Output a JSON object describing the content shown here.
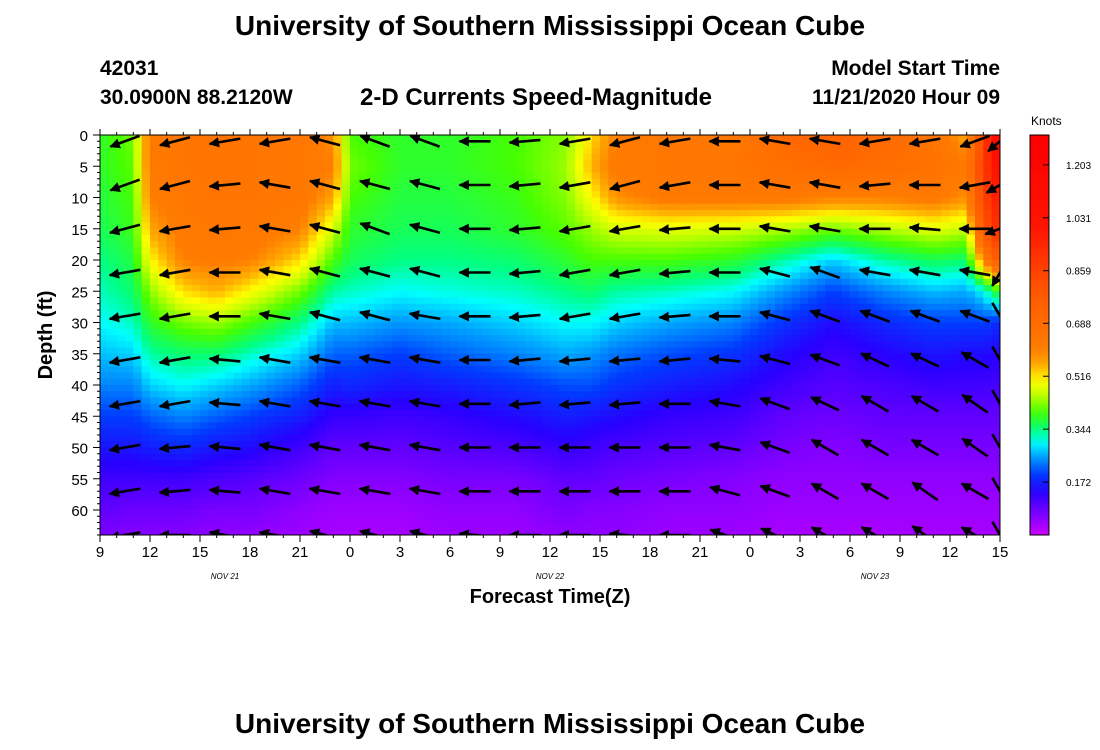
{
  "titles": {
    "main": "University of Southern Mississippi Ocean Cube",
    "footer": "University of Southern Mississippi Ocean Cube",
    "product": "2-D Currents Speed-Magnitude"
  },
  "station": {
    "id": "42031",
    "coords": "30.0900N 88.2120W"
  },
  "model_start": {
    "label": "Model Start Time",
    "value": "11/21/2020 Hour 09"
  },
  "chart_data": {
    "type": "heatmap",
    "title": "2-D Currents Speed-Magnitude",
    "xlabel": "Forecast Time(Z)",
    "ylabel": "Depth (ft)",
    "x_range_hours": [
      0,
      54
    ],
    "ylim": [
      0,
      64
    ],
    "y_inverted": true,
    "x_tick_labels": [
      "9",
      "12",
      "15",
      "18",
      "21",
      "0",
      "3",
      "6",
      "9",
      "12",
      "15",
      "18",
      "21",
      "0",
      "3",
      "6",
      "9",
      "12",
      "15"
    ],
    "date_labels": [
      {
        "text": "NOV  21",
        "hour": 7.5
      },
      {
        "text": "NOV  22",
        "hour": 27
      },
      {
        "text": "NOV  23",
        "hour": 46.5
      }
    ],
    "y_ticks": [
      0,
      5,
      10,
      15,
      20,
      25,
      30,
      35,
      40,
      45,
      50,
      55,
      60
    ],
    "colorbar": {
      "label": "Knots",
      "ticks": [
        0.172,
        0.344,
        0.516,
        0.688,
        0.859,
        1.031,
        1.203
      ],
      "range": [
        0,
        1.3
      ]
    },
    "speed_depths": [
      0,
      5,
      10,
      15,
      20,
      25,
      30,
      35,
      40,
      45,
      50,
      55,
      60,
      64
    ],
    "speed_columns": [
      {
        "hour": 0,
        "speeds": [
          0.38,
          0.38,
          0.37,
          0.36,
          0.34,
          0.32,
          0.3,
          0.27,
          0.24,
          0.2,
          0.16,
          0.12,
          0.09,
          0.07
        ]
      },
      {
        "hour": 2,
        "speeds": [
          0.42,
          0.41,
          0.4,
          0.39,
          0.37,
          0.35,
          0.32,
          0.28,
          0.24,
          0.2,
          0.16,
          0.12,
          0.08,
          0.06
        ]
      },
      {
        "hour": 3,
        "speeds": [
          0.62,
          0.62,
          0.6,
          0.56,
          0.5,
          0.43,
          0.38,
          0.33,
          0.28,
          0.22,
          0.17,
          0.12,
          0.08,
          0.06
        ]
      },
      {
        "hour": 5,
        "speeds": [
          0.64,
          0.64,
          0.63,
          0.62,
          0.6,
          0.52,
          0.42,
          0.35,
          0.3,
          0.24,
          0.18,
          0.12,
          0.08,
          0.06
        ]
      },
      {
        "hour": 7,
        "speeds": [
          0.64,
          0.64,
          0.64,
          0.63,
          0.61,
          0.55,
          0.44,
          0.35,
          0.28,
          0.22,
          0.16,
          0.11,
          0.07,
          0.05
        ]
      },
      {
        "hour": 9,
        "speeds": [
          0.64,
          0.64,
          0.64,
          0.63,
          0.6,
          0.5,
          0.4,
          0.32,
          0.26,
          0.2,
          0.15,
          0.1,
          0.07,
          0.05
        ]
      },
      {
        "hour": 12,
        "speeds": [
          0.63,
          0.63,
          0.63,
          0.6,
          0.52,
          0.42,
          0.34,
          0.28,
          0.22,
          0.17,
          0.12,
          0.08,
          0.05,
          0.04
        ]
      },
      {
        "hour": 14,
        "speeds": [
          0.58,
          0.6,
          0.56,
          0.47,
          0.4,
          0.33,
          0.27,
          0.22,
          0.17,
          0.13,
          0.09,
          0.06,
          0.04,
          0.03
        ]
      },
      {
        "hour": 15,
        "speeds": [
          0.4,
          0.42,
          0.4,
          0.38,
          0.36,
          0.32,
          0.27,
          0.22,
          0.18,
          0.13,
          0.09,
          0.06,
          0.04,
          0.03
        ]
      },
      {
        "hour": 18,
        "speeds": [
          0.38,
          0.38,
          0.37,
          0.36,
          0.34,
          0.3,
          0.25,
          0.2,
          0.16,
          0.12,
          0.09,
          0.06,
          0.04,
          0.03
        ]
      },
      {
        "hour": 21,
        "speeds": [
          0.38,
          0.38,
          0.37,
          0.36,
          0.34,
          0.31,
          0.26,
          0.22,
          0.17,
          0.13,
          0.1,
          0.07,
          0.05,
          0.04
        ]
      },
      {
        "hour": 25,
        "speeds": [
          0.4,
          0.4,
          0.39,
          0.38,
          0.35,
          0.32,
          0.28,
          0.24,
          0.19,
          0.15,
          0.11,
          0.07,
          0.05,
          0.04
        ]
      },
      {
        "hour": 28,
        "speeds": [
          0.43,
          0.44,
          0.43,
          0.41,
          0.38,
          0.34,
          0.3,
          0.26,
          0.21,
          0.17,
          0.13,
          0.09,
          0.07,
          0.05
        ]
      },
      {
        "hour": 29.5,
        "speeds": [
          0.52,
          0.55,
          0.5,
          0.44,
          0.4,
          0.35,
          0.3,
          0.25,
          0.21,
          0.16,
          0.12,
          0.09,
          0.06,
          0.05
        ]
      },
      {
        "hour": 31,
        "speeds": [
          0.6,
          0.62,
          0.58,
          0.47,
          0.4,
          0.33,
          0.28,
          0.23,
          0.19,
          0.15,
          0.11,
          0.08,
          0.06,
          0.05
        ]
      },
      {
        "hour": 34,
        "speeds": [
          0.63,
          0.63,
          0.62,
          0.48,
          0.4,
          0.32,
          0.26,
          0.21,
          0.17,
          0.13,
          0.1,
          0.07,
          0.05,
          0.04
        ]
      },
      {
        "hour": 38,
        "speeds": [
          0.62,
          0.64,
          0.62,
          0.47,
          0.38,
          0.3,
          0.24,
          0.19,
          0.15,
          0.12,
          0.09,
          0.06,
          0.05,
          0.04
        ]
      },
      {
        "hour": 41,
        "speeds": [
          0.7,
          0.67,
          0.62,
          0.45,
          0.33,
          0.25,
          0.19,
          0.15,
          0.12,
          0.09,
          0.07,
          0.05,
          0.04,
          0.03
        ]
      },
      {
        "hour": 44,
        "speeds": [
          0.73,
          0.7,
          0.6,
          0.42,
          0.28,
          0.2,
          0.15,
          0.12,
          0.1,
          0.08,
          0.06,
          0.05,
          0.04,
          0.03
        ]
      },
      {
        "hour": 47,
        "speeds": [
          0.7,
          0.68,
          0.6,
          0.45,
          0.33,
          0.24,
          0.18,
          0.14,
          0.11,
          0.09,
          0.07,
          0.05,
          0.04,
          0.03
        ]
      },
      {
        "hour": 50,
        "speeds": [
          0.64,
          0.66,
          0.62,
          0.48,
          0.36,
          0.27,
          0.2,
          0.16,
          0.12,
          0.09,
          0.07,
          0.05,
          0.04,
          0.03
        ]
      },
      {
        "hour": 52,
        "speeds": [
          0.55,
          0.62,
          0.58,
          0.46,
          0.35,
          0.26,
          0.2,
          0.15,
          0.12,
          0.09,
          0.07,
          0.05,
          0.04,
          0.03
        ]
      },
      {
        "hour": 53,
        "speeds": [
          0.85,
          0.88,
          0.85,
          0.78,
          0.6,
          0.3,
          0.2,
          0.15,
          0.12,
          0.09,
          0.07,
          0.05,
          0.04,
          0.03
        ]
      },
      {
        "hour": 54,
        "speeds": [
          1.2,
          1.05,
          1.0,
          0.95,
          0.8,
          0.4,
          0.18,
          0.14,
          0.11,
          0.09,
          0.07,
          0.05,
          0.04,
          0.03
        ]
      }
    ],
    "vector_hours": [
      1.5,
      4.5,
      7.5,
      10.5,
      13.5,
      16.5,
      19.5,
      22.5,
      25.5,
      28.5,
      31.5,
      34.5,
      37.5,
      40.5,
      43.5,
      46.5,
      49.5,
      52.5,
      54
    ],
    "vector_depths": [
      1,
      8,
      15,
      22,
      29,
      36,
      43,
      50,
      57,
      64
    ],
    "vector_directions_deg": [
      [
        200,
        200,
        195,
        190,
        190,
        190,
        190,
        190,
        190,
        190
      ],
      [
        195,
        195,
        190,
        190,
        190,
        190,
        190,
        185,
        185,
        180
      ],
      [
        190,
        185,
        185,
        180,
        180,
        175,
        175,
        175,
        175,
        170
      ],
      [
        190,
        170,
        170,
        170,
        170,
        170,
        170,
        170,
        170,
        170
      ],
      [
        165,
        165,
        165,
        165,
        165,
        170,
        170,
        170,
        170,
        165
      ],
      [
        160,
        165,
        160,
        165,
        165,
        170,
        170,
        170,
        170,
        165
      ],
      [
        160,
        165,
        165,
        165,
        170,
        170,
        170,
        170,
        170,
        165
      ],
      [
        180,
        180,
        180,
        180,
        180,
        180,
        180,
        180,
        180,
        175
      ],
      [
        185,
        185,
        185,
        185,
        185,
        185,
        185,
        180,
        180,
        180
      ],
      [
        190,
        190,
        190,
        190,
        190,
        185,
        185,
        180,
        180,
        180
      ],
      [
        195,
        195,
        190,
        190,
        190,
        185,
        185,
        180,
        180,
        175
      ],
      [
        190,
        190,
        185,
        185,
        185,
        185,
        180,
        180,
        180,
        180
      ],
      [
        180,
        180,
        180,
        180,
        180,
        175,
        170,
        170,
        165,
        160
      ],
      [
        170,
        170,
        170,
        165,
        165,
        165,
        160,
        160,
        160,
        155
      ],
      [
        170,
        170,
        170,
        160,
        160,
        160,
        155,
        150,
        150,
        150
      ],
      [
        190,
        185,
        180,
        170,
        160,
        155,
        150,
        150,
        150,
        150
      ],
      [
        190,
        180,
        175,
        170,
        160,
        155,
        150,
        150,
        145,
        145
      ],
      [
        200,
        190,
        180,
        170,
        160,
        150,
        145,
        145,
        150,
        150
      ],
      [
        220,
        210,
        200,
        240,
        300,
        300,
        300,
        300,
        300,
        300
      ]
    ]
  }
}
